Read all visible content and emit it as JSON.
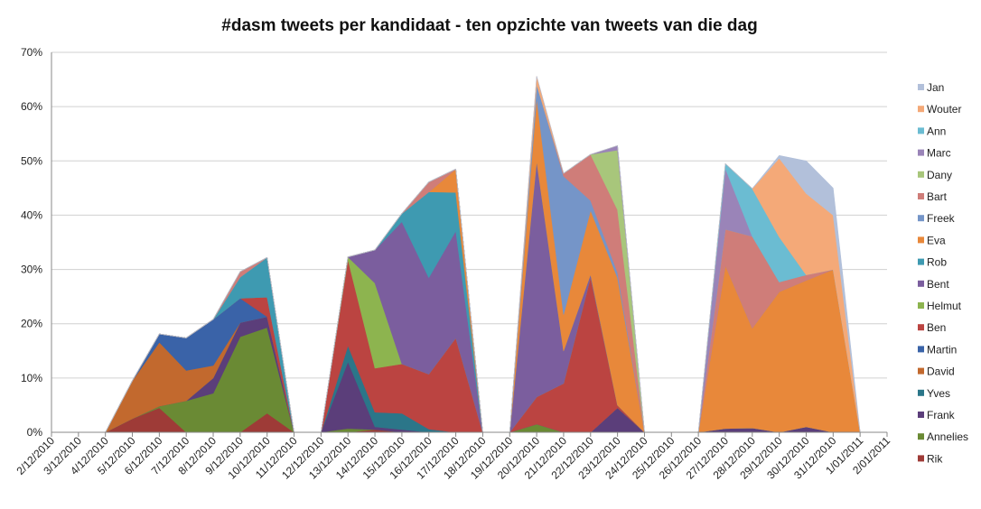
{
  "chart_data": {
    "type": "area",
    "stacked": true,
    "title": "#dasm tweets per kandidaat - ten opzichte van tweets van die dag",
    "xlabel": "",
    "ylabel": "",
    "ylim": [
      0,
      70
    ],
    "y_ticks": [
      "0%",
      "10%",
      "20%",
      "30%",
      "40%",
      "50%",
      "60%",
      "70%"
    ],
    "grid": true,
    "legend_position": "right",
    "categories": [
      "2/12/2010",
      "3/12/2010",
      "4/12/2010",
      "5/12/2010",
      "6/12/2010",
      "7/12/2010",
      "8/12/2010",
      "9/12/2010",
      "10/12/2010",
      "11/12/2010",
      "12/12/2010",
      "13/12/2010",
      "14/12/2010",
      "15/12/2010",
      "16/12/2010",
      "17/12/2010",
      "18/12/2010",
      "19/12/2010",
      "20/12/2010",
      "21/12/2010",
      "22/12/2010",
      "23/12/2010",
      "24/12/2010",
      "25/12/2010",
      "26/12/2010",
      "27/12/2010",
      "28/12/2010",
      "29/12/2010",
      "30/12/2010",
      "31/12/2010",
      "1/01/2011",
      "2/01/2011"
    ],
    "series": [
      {
        "name": "Rik",
        "color": "#9e3b37",
        "values": [
          null,
          null,
          0,
          2.5,
          4.5,
          0,
          0,
          0,
          3.5,
          0,
          0,
          0,
          0.5,
          0,
          0,
          0,
          0,
          0,
          0,
          0,
          0,
          0,
          0,
          null,
          0,
          0,
          0,
          0,
          0,
          0,
          0,
          null
        ]
      },
      {
        "name": "Annelies",
        "color": "#6a8a34",
        "values": [
          null,
          null,
          0,
          0,
          0.3,
          5.8,
          7.2,
          17.6,
          15.8,
          0,
          0,
          0.7,
          0,
          0,
          0,
          0,
          0,
          0,
          1.5,
          0,
          0,
          0,
          0,
          null,
          0,
          0,
          0,
          0,
          0,
          0,
          0,
          null
        ]
      },
      {
        "name": "Frank",
        "color": "#5b3e7a",
        "values": [
          null,
          null,
          0,
          0,
          0,
          0,
          2.8,
          2.6,
          2,
          0,
          0,
          12.3,
          0.5,
          0.5,
          0,
          0,
          0,
          0,
          0,
          0,
          0,
          4.5,
          0,
          null,
          0,
          0.7,
          0.8,
          0,
          1,
          0,
          0,
          null
        ]
      },
      {
        "name": "Yves",
        "color": "#2b7689",
        "values": [
          null,
          null,
          0,
          0,
          0,
          0,
          0,
          0,
          0,
          0,
          0,
          3,
          2.7,
          3,
          0.6,
          0,
          0,
          0,
          0,
          0,
          0,
          0,
          0,
          null,
          0,
          0,
          0,
          0,
          0,
          0,
          0,
          null
        ]
      },
      {
        "name": "David",
        "color": "#c2692e",
        "values": [
          null,
          null,
          0,
          7,
          11.8,
          5.6,
          2.3,
          0,
          0,
          0,
          0,
          0,
          0,
          0,
          0,
          0,
          0,
          0,
          0,
          0,
          0,
          0,
          0,
          null,
          0,
          0,
          0,
          0,
          0,
          0,
          0,
          null
        ]
      },
      {
        "name": "Martin",
        "color": "#3a63a8",
        "values": [
          null,
          null,
          0,
          0,
          1.5,
          6,
          8.5,
          4.5,
          0,
          0,
          0,
          0,
          0,
          0,
          0,
          0,
          0,
          0,
          0,
          0,
          0,
          0,
          0,
          null,
          0,
          0,
          0,
          0,
          0,
          0,
          0,
          null
        ]
      },
      {
        "name": "Ben",
        "color": "#bb4441",
        "values": [
          null,
          null,
          0,
          0,
          0,
          0,
          0,
          0,
          3.6,
          0,
          0,
          15.8,
          8.1,
          9.1,
          10.1,
          17.4,
          0,
          0,
          5,
          9,
          28.6,
          0.5,
          0,
          null,
          0,
          0,
          0,
          0,
          0,
          0,
          0,
          null
        ]
      },
      {
        "name": "Helmut",
        "color": "#8db44f",
        "values": [
          null,
          null,
          0,
          0,
          0,
          0,
          0,
          0,
          0,
          0,
          0,
          0.5,
          15.7,
          0,
          0,
          0,
          0,
          0,
          0,
          0,
          0,
          0,
          0,
          null,
          0,
          0,
          0,
          0,
          0,
          0,
          0,
          null
        ]
      },
      {
        "name": "Bent",
        "color": "#7b5e9e",
        "values": [
          null,
          null,
          0,
          0,
          0,
          0,
          0,
          0,
          0,
          0,
          0,
          0,
          6.1,
          26.2,
          17.8,
          19.7,
          0,
          0,
          43.5,
          6,
          0.5,
          0,
          0,
          null,
          0,
          0,
          0,
          0,
          0,
          0,
          0,
          null
        ]
      },
      {
        "name": "Rob",
        "color": "#3e9ab1",
        "values": [
          null,
          null,
          0,
          0,
          0,
          0,
          0,
          3.9,
          7.3,
          0,
          0,
          0,
          0,
          1.5,
          15.8,
          7.1,
          0,
          0,
          0,
          0,
          0,
          0,
          0,
          null,
          0,
          0,
          0,
          0,
          0,
          0,
          0,
          null
        ]
      },
      {
        "name": "Eva",
        "color": "#e8883a",
        "values": [
          null,
          null,
          0,
          0,
          0,
          0,
          0,
          0,
          0,
          0,
          0,
          0,
          0,
          0,
          0,
          4.3,
          0,
          0,
          11.6,
          6.7,
          11.8,
          23.5,
          0,
          null,
          0,
          30.1,
          18.4,
          25.9,
          27,
          30,
          0,
          null
        ]
      },
      {
        "name": "Freek",
        "color": "#7595c8",
        "values": [
          null,
          null,
          0,
          0,
          0,
          0,
          0,
          0,
          0,
          0,
          0,
          0,
          0,
          0,
          0,
          0,
          0,
          0,
          2.5,
          25.5,
          1.8,
          1,
          0,
          null,
          0,
          0,
          0,
          0,
          0,
          0,
          0,
          null
        ]
      },
      {
        "name": "Bart",
        "color": "#cf7d79",
        "values": [
          null,
          null,
          0,
          0,
          0,
          0,
          0,
          1,
          0,
          0,
          0,
          0,
          0,
          0,
          1.8,
          0,
          0,
          0,
          0,
          0.5,
          8.5,
          11.5,
          0,
          null,
          0,
          6.6,
          16.9,
          1.8,
          1,
          0,
          0,
          null
        ]
      },
      {
        "name": "Dany",
        "color": "#a8c67b",
        "values": [
          null,
          null,
          0,
          0,
          0,
          0,
          0,
          0,
          0,
          0,
          0,
          0,
          0,
          0,
          0,
          0,
          0,
          0,
          0,
          0,
          0,
          11,
          0,
          null,
          0,
          0,
          0,
          0,
          0,
          0,
          0,
          null
        ]
      },
      {
        "name": "Marc",
        "color": "#9a84b8",
        "values": [
          null,
          null,
          0,
          0,
          0,
          0,
          0,
          0,
          0,
          0,
          0,
          0,
          0,
          0,
          0,
          0,
          0,
          0,
          0,
          0,
          0,
          0.8,
          0,
          null,
          0,
          11.2,
          0,
          0,
          0,
          0,
          0,
          null
        ]
      },
      {
        "name": "Ann",
        "color": "#6bbcd2",
        "values": [
          null,
          null,
          0,
          0,
          0,
          0,
          0,
          0,
          0,
          0,
          0,
          0,
          0,
          0,
          0,
          0,
          0,
          0,
          0,
          0,
          0,
          0,
          0,
          null,
          0,
          0.9,
          8.8,
          8.3,
          0,
          0,
          0,
          null
        ]
      },
      {
        "name": "Wouter",
        "color": "#f4a978",
        "values": [
          null,
          null,
          0,
          0,
          0,
          0,
          0,
          0,
          0,
          0,
          0,
          0,
          0,
          0,
          0,
          0,
          0,
          0,
          1.5,
          0,
          0,
          0,
          0,
          null,
          0,
          0,
          0,
          14.5,
          15,
          10,
          0,
          null
        ]
      },
      {
        "name": "Jan",
        "color": "#b2c0da",
        "values": [
          null,
          null,
          0,
          0,
          0,
          0,
          0,
          0,
          0,
          0,
          0,
          0,
          0,
          0,
          0,
          0,
          0,
          0,
          0,
          0,
          0,
          0,
          0,
          null,
          0,
          0,
          0,
          0.5,
          6,
          5,
          0,
          null
        ]
      }
    ]
  }
}
